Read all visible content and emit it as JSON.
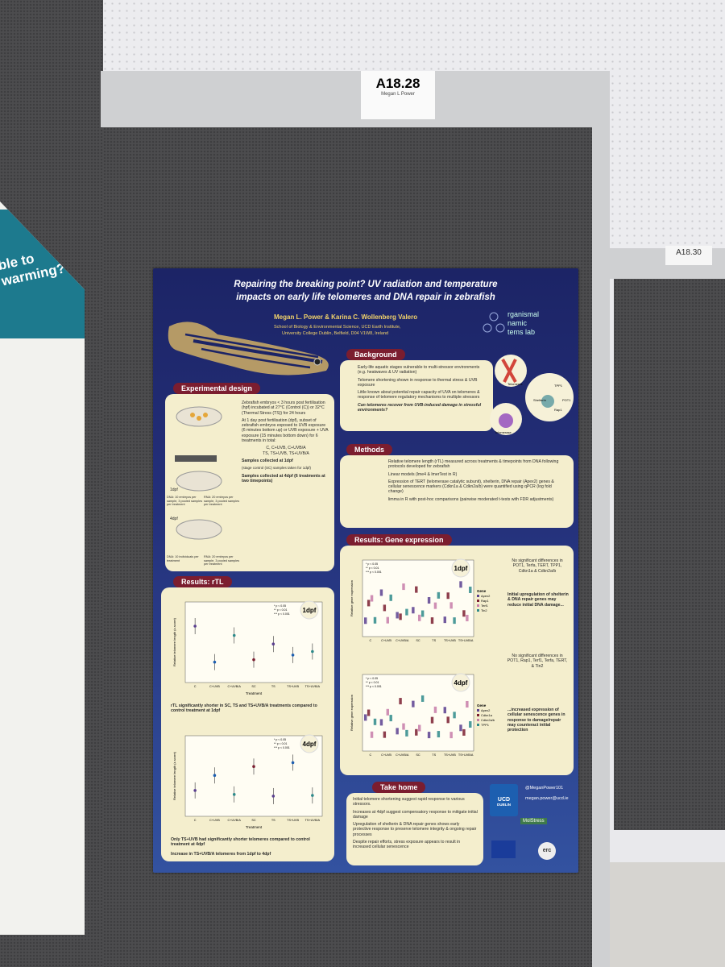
{
  "booth": {
    "label": "A18.28",
    "presenter": "Megan L Power"
  },
  "neighbor_booth": {
    "label": "A18.30"
  },
  "left_poster": {
    "title": "ble to warming?"
  },
  "poster": {
    "title": [
      "Repairing the breaking point? UV radiation and temperature",
      "impacts on early life telomeres and DNA repair in zebrafish"
    ],
    "authors": "Megan L. Power & Karina C. Wollenberg Valero",
    "affiliation": [
      "School of Biology & Environmental Science, UCD Earth Institute,",
      "University College Dublin, Belfield, D04 V1W8, Ireland"
    ],
    "lab": [
      "rganismal",
      "namic",
      "tems lab"
    ],
    "background": {
      "heading": "Background",
      "bullets": [
        "Early-life aquatic stages vulnerable to multi-stressor environments (e.g. heatwaves & UV radiation)",
        "Telomere shortening shown in response to thermal stress & UVB exposure",
        "Little known about potential repair capacity of UVA on telomeres & response of telomere regulatory mechanisms to multiple stressors",
        "Can telomeres recover from UVB-induced damage in stressful environments?"
      ],
      "labels": [
        "Telomeres",
        "Shelterin",
        "TPP1",
        "POT1",
        "Rap1",
        "Telomerase"
      ]
    },
    "experimental_design": {
      "heading": "Experimental design",
      "steps": [
        "Zebrafish embryos < 3 hours post fertilisation (hpf) incubated at 27°C (Control (C)) or 32°C (Thermal Stress (TS)) for 24 hours",
        "At 1 day post fertilisation (dpf), subset of zebrafish embryos exposed to UVB exposure (6 minutes bottom up) or UVB exposure + UVA exposure (15 minutes bottom down) for 6 treatments in total:",
        "C, C+UVB, C+UVB/A",
        "TS, TS+UVB, TS+UVB/A",
        "Samples collected at 1dpf",
        "(stage control (SC) samples taken for 1dpf)",
        "Samples collected at 4dpf (6 treatments at two timepoints)"
      ],
      "timepoints": [
        "1dpf",
        "4dpf"
      ],
      "samples": [
        "DNA: 10 embryos per sample, 3 pooled samples per treatment",
        "RNA: 20 embryos per sample, 3 pooled samples per treatment",
        "DNA: 10 individuals per treatment",
        "RNA: 20 embryos per sample, 3 pooled samples per treatment"
      ]
    },
    "methods": {
      "heading": "Methods",
      "bullets": [
        "Relative telomere length (rTL) measured across treatments & timepoints from DNA following protocols developed for zebrafish",
        "Linear models (lme4 & lmerTest in R)",
        "Expression of TERT (telomerase catalytic subunit), shelterin, DNA repair (Apex2) genes & cellular senescence markers (Cdkn1a & Cdkn2a/b) were quantified using qPCR (log fold change)",
        "limma in R with post-hoc comparisons (pairwise moderated t-tests with FDR adjustments)"
      ]
    },
    "significance": [
      "* p < 0.05",
      "** p < 0.01",
      "*** p < 0.001"
    ],
    "categories": [
      "C",
      "C+UVB",
      "C+UVB/A",
      "SC",
      "TS",
      "TS+UVB",
      "TS+UVB/A"
    ],
    "gene_expression": {
      "heading": "Results: Gene expression",
      "y_label": "Relative gene expression",
      "legend_title": "Gene",
      "panels": [
        {
          "label": "1dpf",
          "legend": [
            "Apex2",
            "Rap1",
            "Terf1",
            "Tin2"
          ],
          "note": "No significant differences in POT1, Terfa, TERT, TPP1, Cdkn1a & Cdkn2a/b",
          "finding": "Initial upregulation of shelterin & DNA repair genes may reduce initial DNA damage..."
        },
        {
          "label": "4dpf",
          "legend": [
            "Apex2",
            "Cdkn1a",
            "Cdkn2a/b",
            "TPP1"
          ],
          "note": "No significant differences in POT1, Rap1, Terf1, Terfa, TERT, & Tin2",
          "finding": "...increased expression of cellular senescence genes in response to damage/repair may counteract initial protection"
        }
      ]
    },
    "rtl": {
      "heading": "Results: rTL",
      "y_label": "Relative telomere length (z-score)",
      "x_label": "Treatment",
      "panels": [
        "1dpf",
        "4dpf"
      ],
      "findings": [
        "rTL significantly shorter in SC, TS and TS+UVB/A treatments compared to control treatment at 1dpf",
        "Only TS+UVB had significantly shorter telomeres compared to control treatment at 4dpf",
        "Increase in TS+UVB/A telomeres from 1dpf to 4dpf"
      ]
    },
    "take_home": {
      "heading": "Take home",
      "bullets": [
        "Initial telomere shortening suggest rapid response to various stressors.",
        "Increases at 4dpf suggest compensatory response to mitigate initial damage",
        "Upregulation of shelterin & DNA repair genes shows early protective response to preserve telomere integrity & ongoing repair processes",
        "Despite repair efforts, stress exposure appears to result in increased cellular senescence"
      ]
    },
    "contact": {
      "handle": "@MeganPower101",
      "email": "megan.power@ucd.ie"
    },
    "logos": [
      "UCD",
      "DUBLIN",
      "MolStress",
      "erc"
    ]
  }
}
